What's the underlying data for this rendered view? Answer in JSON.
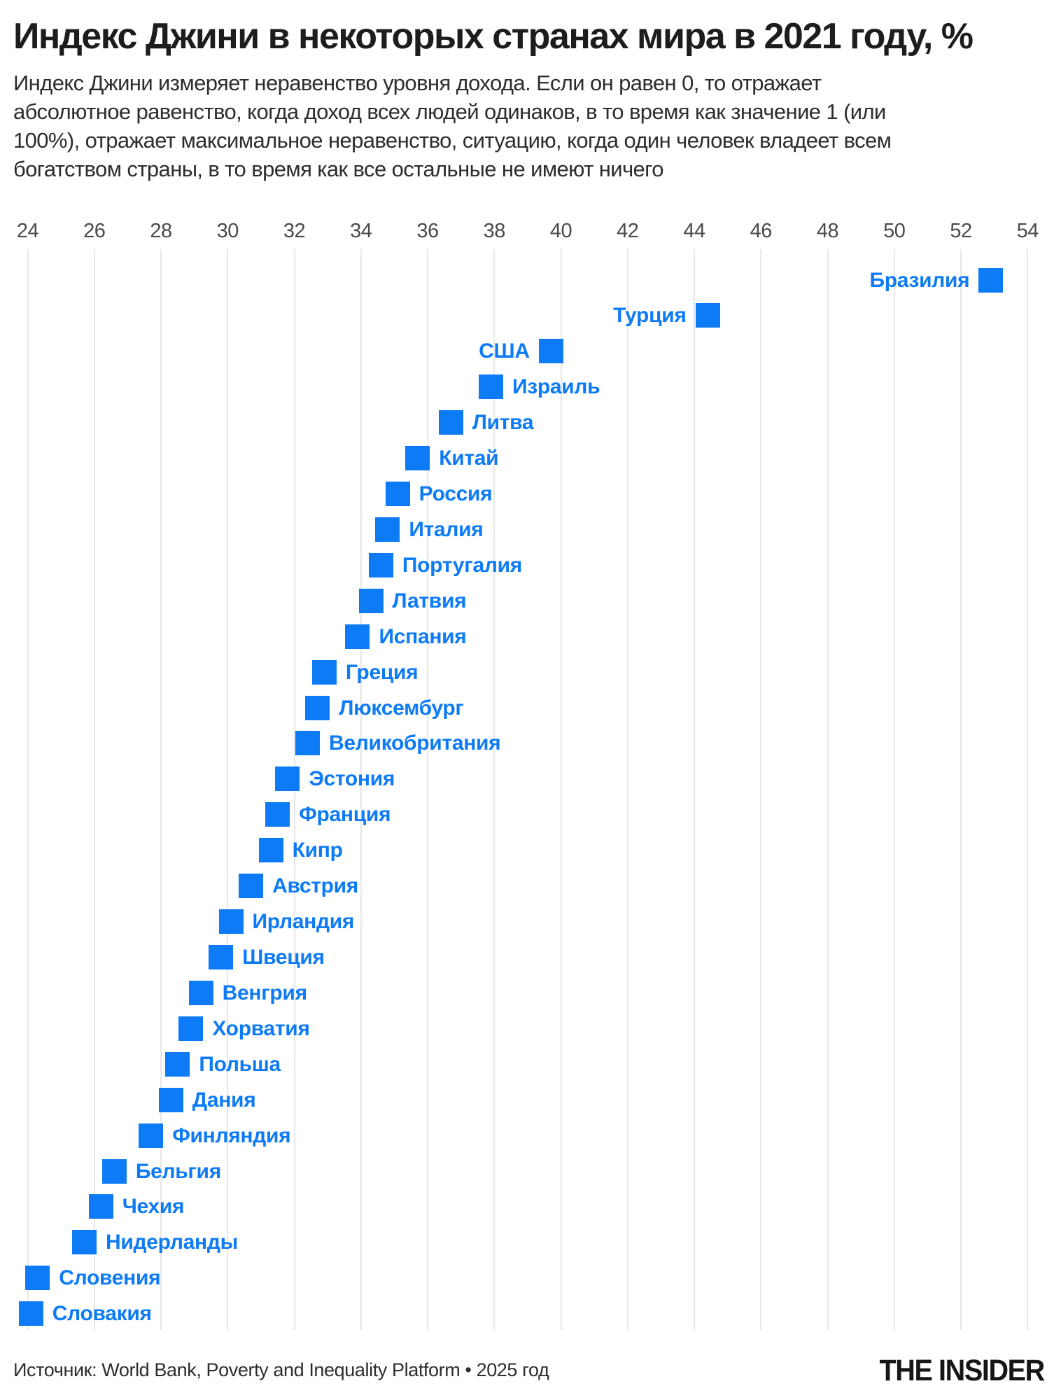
{
  "header": {
    "title": "Индекс Джини в некоторых странах мира в 2021 году, %",
    "subtitle": "Индекс Джини измеряет неравенство уровня дохода. Если он равен 0, то отражает абсолютное равенство, когда доход всех людей одинаков, в то время как значение 1 (или 100%), отражает максимальное неравенство, ситуацию, когда один человек владеет всем богатством страны, в то время как все остальные не имеют ничего"
  },
  "chart_data": {
    "type": "scatter",
    "title": "Индекс Джини в некоторых странах мира в 2021 году, %",
    "xlabel": "",
    "ylabel": "",
    "x_axis": {
      "min": 24,
      "max": 54,
      "tick_step": 2,
      "ticks": [
        24,
        26,
        28,
        30,
        32,
        34,
        36,
        38,
        40,
        42,
        44,
        46,
        48,
        50,
        52,
        54
      ]
    },
    "grid": true,
    "marker": "square",
    "marker_color": "#0d7bf5",
    "label_color": "#0d7bf5",
    "points": [
      {
        "country": "Бразилия",
        "value": 52.9
      },
      {
        "country": "Турция",
        "value": 44.4
      },
      {
        "country": "США",
        "value": 39.7
      },
      {
        "country": "Израиль",
        "value": 37.9
      },
      {
        "country": "Литва",
        "value": 36.7
      },
      {
        "country": "Китай",
        "value": 35.7
      },
      {
        "country": "Россия",
        "value": 35.1
      },
      {
        "country": "Италия",
        "value": 34.8
      },
      {
        "country": "Португалия",
        "value": 34.6
      },
      {
        "country": "Латвия",
        "value": 34.3
      },
      {
        "country": "Испания",
        "value": 33.9
      },
      {
        "country": "Греция",
        "value": 32.9
      },
      {
        "country": "Люксембург",
        "value": 32.7
      },
      {
        "country": "Великобритания",
        "value": 32.4
      },
      {
        "country": "Эстония",
        "value": 31.8
      },
      {
        "country": "Франция",
        "value": 31.5
      },
      {
        "country": "Кипр",
        "value": 31.3
      },
      {
        "country": "Австрия",
        "value": 30.7
      },
      {
        "country": "Ирландия",
        "value": 30.1
      },
      {
        "country": "Швеция",
        "value": 29.8
      },
      {
        "country": "Венгрия",
        "value": 29.2
      },
      {
        "country": "Хорватия",
        "value": 28.9
      },
      {
        "country": "Польша",
        "value": 28.5
      },
      {
        "country": "Дания",
        "value": 28.3
      },
      {
        "country": "Финляндия",
        "value": 27.7
      },
      {
        "country": "Бельгия",
        "value": 26.6
      },
      {
        "country": "Чехия",
        "value": 26.2
      },
      {
        "country": "Нидерланды",
        "value": 25.7
      },
      {
        "country": "Словения",
        "value": 24.3
      },
      {
        "country": "Словакия",
        "value": 24.1
      }
    ]
  },
  "footer": {
    "source": "Источник: World Bank, Poverty and Inequality Platform • 2025 год",
    "logo": "THE INSIDER"
  },
  "colors": {
    "accent": "#0d7bf5",
    "title_text": "#1d1d1d",
    "body_text": "#2d2d2d",
    "axis_text": "#4a4a4a",
    "gridline": "#e7e7e7",
    "background": "#ffffff"
  }
}
